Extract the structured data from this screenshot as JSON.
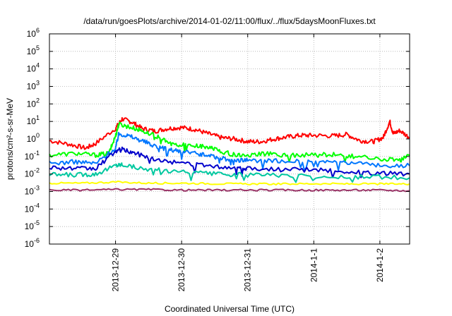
{
  "chart_data": {
    "type": "line",
    "title": "/data/run/goesPlots/archive/2014-01-02/11:00/flux/../flux/5daysMoonFluxes.txt",
    "xlabel": "Coordinated Universal Time (UTC)",
    "ylabel": "protons/cm²-s-sr-MeV",
    "y_scale": "log",
    "ylim": [
      1e-06,
      1000000.0
    ],
    "xlim": [
      -1.0,
      4.45
    ],
    "x_unit": "days from 2013-12-29 00:00 UTC",
    "grid": true,
    "y_ticks": [
      {
        "base": "10",
        "exp": "-6",
        "value": 1e-06
      },
      {
        "base": "10",
        "exp": "-5",
        "value": 1e-05
      },
      {
        "base": "10",
        "exp": "-4",
        "value": 0.0001
      },
      {
        "base": "10",
        "exp": "-3",
        "value": 0.001
      },
      {
        "base": "10",
        "exp": "-2",
        "value": 0.01
      },
      {
        "base": "10",
        "exp": "-1",
        "value": 0.1
      },
      {
        "base": "10",
        "exp": "0",
        "value": 1
      },
      {
        "base": "10",
        "exp": "1",
        "value": 10
      },
      {
        "base": "10",
        "exp": "2",
        "value": 100
      },
      {
        "base": "10",
        "exp": "3",
        "value": 1000
      },
      {
        "base": "10",
        "exp": "4",
        "value": 10000
      },
      {
        "base": "10",
        "exp": "5",
        "value": 100000
      },
      {
        "base": "10",
        "exp": "6",
        "value": 1000000
      }
    ],
    "x_ticks": [
      {
        "label": "2013-12-29",
        "value": 0
      },
      {
        "label": "2013-12-30",
        "value": 1
      },
      {
        "label": "2013-12-31",
        "value": 2
      },
      {
        "label": "2014-1-1",
        "value": 3
      },
      {
        "label": "2014-1-2",
        "value": 4
      }
    ],
    "series": [
      {
        "color": "#ff0000",
        "points": [
          [
            -1.0,
            0.8
          ],
          [
            -0.7,
            0.5
          ],
          [
            -0.45,
            0.3
          ],
          [
            -0.3,
            0.55
          ],
          [
            0.0,
            4
          ],
          [
            0.1,
            14
          ],
          [
            0.25,
            9
          ],
          [
            0.4,
            4
          ],
          [
            0.6,
            2.8
          ],
          [
            0.8,
            4
          ],
          [
            1.0,
            4.5
          ],
          [
            1.2,
            3.5
          ],
          [
            1.4,
            2
          ],
          [
            1.6,
            1.2
          ],
          [
            1.8,
            1
          ],
          [
            2.0,
            0.7
          ],
          [
            2.2,
            0.7
          ],
          [
            2.4,
            1
          ],
          [
            2.6,
            1.3
          ],
          [
            2.8,
            1.6
          ],
          [
            3.0,
            1.6
          ],
          [
            3.3,
            1.5
          ],
          [
            3.5,
            1.8
          ],
          [
            3.7,
            0.8
          ],
          [
            3.9,
            0.7
          ],
          [
            4.05,
            1.2
          ],
          [
            4.15,
            10
          ],
          [
            4.2,
            2
          ],
          [
            4.3,
            3
          ],
          [
            4.45,
            1.2
          ]
        ]
      },
      {
        "color": "#00ff00",
        "points": [
          [
            -1.0,
            0.12
          ],
          [
            -0.6,
            0.15
          ],
          [
            -0.3,
            0.12
          ],
          [
            -0.1,
            0.15
          ],
          [
            0.0,
            1.5
          ],
          [
            0.05,
            7
          ],
          [
            0.2,
            5
          ],
          [
            0.4,
            3
          ],
          [
            0.6,
            1.5
          ],
          [
            0.8,
            0.6
          ],
          [
            1.0,
            0.45
          ],
          [
            1.2,
            0.4
          ],
          [
            1.4,
            0.35
          ],
          [
            1.6,
            0.2
          ],
          [
            1.8,
            0.12
          ],
          [
            2.0,
            0.12
          ],
          [
            2.3,
            0.14
          ],
          [
            2.6,
            0.12
          ],
          [
            3.0,
            0.12
          ],
          [
            3.3,
            0.13
          ],
          [
            3.6,
            0.1
          ],
          [
            4.0,
            0.07
          ],
          [
            4.3,
            0.06
          ],
          [
            4.45,
            0.11
          ]
        ]
      },
      {
        "color": "#0077ff",
        "points": [
          [
            -1.0,
            0.04
          ],
          [
            -0.6,
            0.05
          ],
          [
            -0.3,
            0.04
          ],
          [
            0.0,
            0.3
          ],
          [
            0.05,
            2
          ],
          [
            0.2,
            1.5
          ],
          [
            0.4,
            0.8
          ],
          [
            0.6,
            0.4
          ],
          [
            0.8,
            0.25
          ],
          [
            1.0,
            0.18
          ],
          [
            1.2,
            0.15
          ],
          [
            1.4,
            0.12
          ],
          [
            1.6,
            0.08
          ],
          [
            1.8,
            0.06
          ],
          [
            2.0,
            0.06
          ],
          [
            2.4,
            0.06
          ],
          [
            2.8,
            0.05
          ],
          [
            3.2,
            0.05
          ],
          [
            3.6,
            0.04
          ],
          [
            4.0,
            0.03
          ],
          [
            4.45,
            0.03
          ]
        ]
      },
      {
        "color": "#0000cc",
        "points": [
          [
            -1.0,
            0.025
          ],
          [
            -0.6,
            0.02
          ],
          [
            -0.3,
            0.02
          ],
          [
            0.0,
            0.2
          ],
          [
            0.1,
            0.25
          ],
          [
            0.3,
            0.15
          ],
          [
            0.6,
            0.07
          ],
          [
            1.0,
            0.04
          ],
          [
            1.4,
            0.03
          ],
          [
            1.8,
            0.022
          ],
          [
            2.0,
            0.02
          ],
          [
            2.5,
            0.018
          ],
          [
            3.0,
            0.017
          ],
          [
            3.5,
            0.014
          ],
          [
            4.0,
            0.011
          ],
          [
            4.45,
            0.01
          ]
        ]
      },
      {
        "color": "#00c8a0",
        "points": [
          [
            -1.0,
            0.009
          ],
          [
            -0.6,
            0.009
          ],
          [
            -0.3,
            0.01
          ],
          [
            0.0,
            0.03
          ],
          [
            0.1,
            0.035
          ],
          [
            0.4,
            0.02
          ],
          [
            0.8,
            0.015
          ],
          [
            1.2,
            0.012
          ],
          [
            1.6,
            0.01
          ],
          [
            2.0,
            0.009
          ],
          [
            2.6,
            0.008
          ],
          [
            3.2,
            0.007
          ],
          [
            3.8,
            0.007
          ],
          [
            4.45,
            0.006
          ]
        ]
      },
      {
        "color": "#ffff00",
        "points": [
          [
            -1.0,
            0.003
          ],
          [
            -0.5,
            0.003
          ],
          [
            0.0,
            0.0035
          ],
          [
            0.5,
            0.003
          ],
          [
            1.0,
            0.003
          ],
          [
            1.5,
            0.0028
          ],
          [
            2.0,
            0.0027
          ],
          [
            2.5,
            0.0027
          ],
          [
            3.0,
            0.0028
          ],
          [
            3.5,
            0.0027
          ],
          [
            4.0,
            0.0027
          ],
          [
            4.45,
            0.0027
          ]
        ]
      },
      {
        "color": "#993366",
        "points": [
          [
            -1.0,
            0.0012
          ],
          [
            -0.5,
            0.0012
          ],
          [
            0.0,
            0.0013
          ],
          [
            0.5,
            0.0013
          ],
          [
            1.0,
            0.0012
          ],
          [
            1.5,
            0.0012
          ],
          [
            2.0,
            0.0012
          ],
          [
            2.5,
            0.0012
          ],
          [
            3.0,
            0.0012
          ],
          [
            3.5,
            0.0012
          ],
          [
            4.0,
            0.0012
          ],
          [
            4.45,
            0.0011
          ]
        ]
      }
    ]
  }
}
